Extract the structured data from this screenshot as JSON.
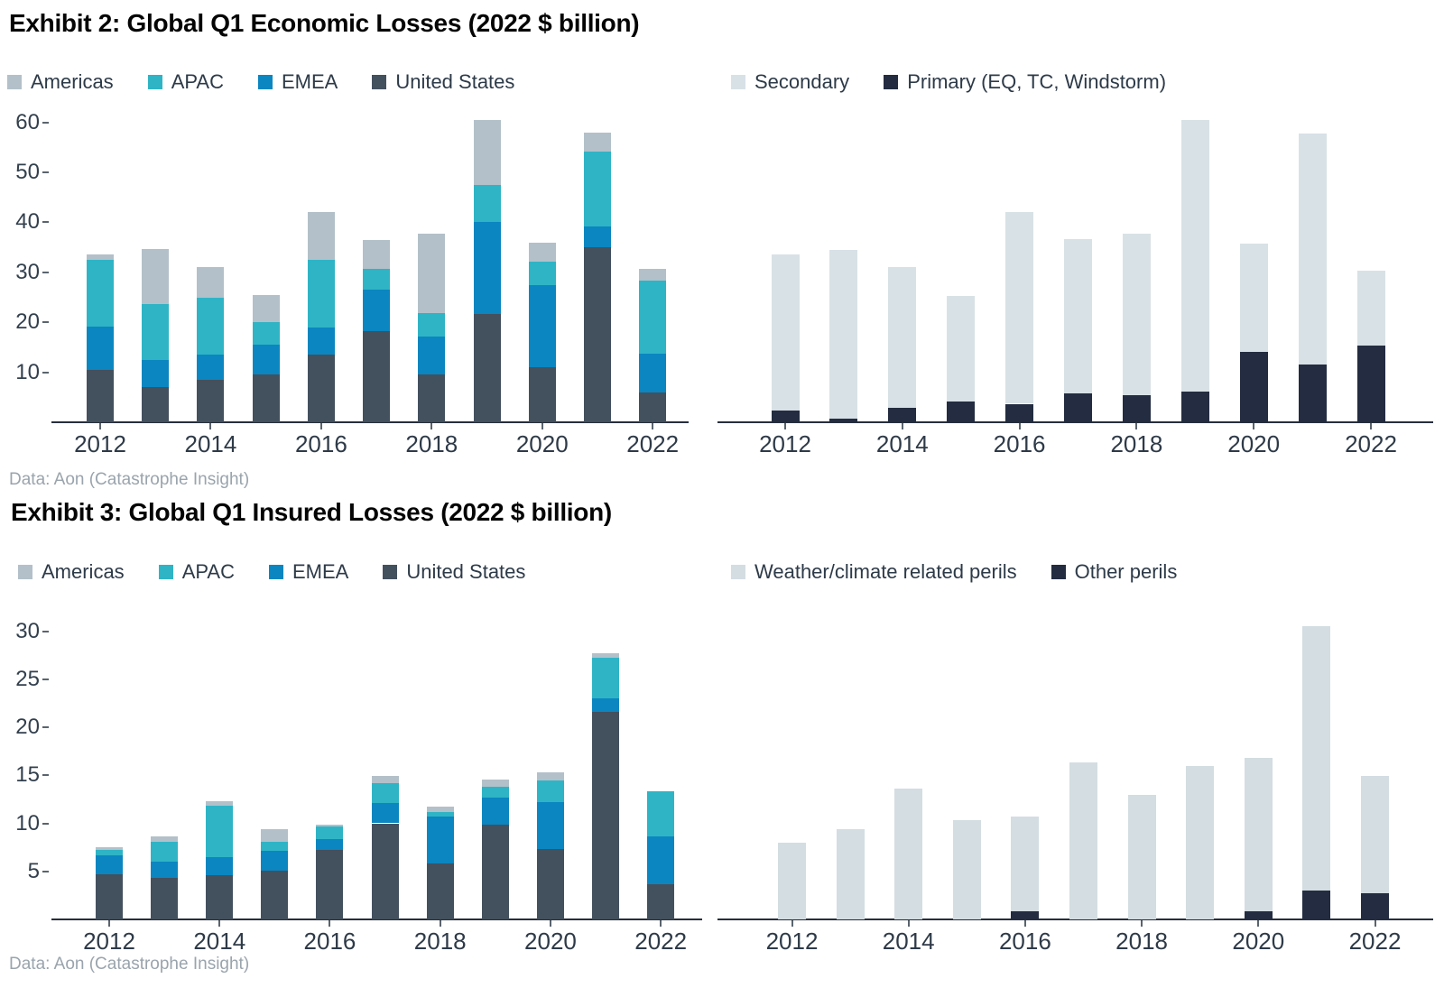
{
  "exhibit2": {
    "title": "Exhibit 2: Global Q1 Economic Losses (2022 $ billion)",
    "source": "Data: Aon (Catastrophe Insight)",
    "legend_left": [
      {
        "label": "Americas",
        "color_key": "americas"
      },
      {
        "label": "APAC",
        "color_key": "apac"
      },
      {
        "label": "EMEA",
        "color_key": "emea"
      },
      {
        "label": "United States",
        "color_key": "united_states"
      }
    ],
    "legend_right": [
      {
        "label": "Secondary",
        "color_key": "secondary"
      },
      {
        "label": "Primary (EQ, TC, Windstorm)",
        "color_key": "primary"
      }
    ]
  },
  "exhibit3": {
    "title": "Exhibit 3: Global Q1 Insured Losses (2022 $ billion)",
    "source": "Data: Aon (Catastrophe Insight)",
    "legend_left": [
      {
        "label": "Americas",
        "color_key": "americas"
      },
      {
        "label": "APAC",
        "color_key": "apac"
      },
      {
        "label": "EMEA",
        "color_key": "emea"
      },
      {
        "label": "United States",
        "color_key": "united_states"
      }
    ],
    "legend_right": [
      {
        "label": "Weather/climate related perils",
        "color_key": "weather"
      },
      {
        "label": "Other perils",
        "color_key": "other"
      }
    ]
  },
  "colors": {
    "united_states": "#43505e",
    "emea": "#0b86c0",
    "apac": "#2fb4c5",
    "americas": "#b3c0c9",
    "secondary": "#d8e1e6",
    "primary": "#232c40",
    "weather": "#d3dde2",
    "other": "#232c40",
    "axis_line": "#262f3b",
    "tick_mark": "#5a646e",
    "tick_label": "#2e3a48",
    "source_text": "#9aa4ad",
    "title_text": "#050505"
  },
  "chart_data": [
    {
      "id": "economic-by-region",
      "type": "bar",
      "stacked": true,
      "title": "Global Q1 Economic Losses by region (2022 $ billion)",
      "categories": [
        2012,
        2013,
        2014,
        2015,
        2016,
        2017,
        2018,
        2019,
        2020,
        2021,
        2022
      ],
      "x_tick_labels": [
        "2012",
        "2014",
        "2016",
        "2018",
        "2020",
        "2022"
      ],
      "y_ticks": [
        10,
        20,
        30,
        40,
        50,
        60
      ],
      "ylim": [
        0,
        62
      ],
      "grid": false,
      "legend_position": "top",
      "series": [
        {
          "name": "United States",
          "color_key": "united_states",
          "values": [
            10.4,
            7.1,
            8.4,
            9.6,
            13.6,
            18.2,
            9.6,
            21.7,
            11.0,
            35.0,
            6.0
          ]
        },
        {
          "name": "EMEA",
          "color_key": "emea",
          "values": [
            8.7,
            5.4,
            5.1,
            5.9,
            5.3,
            8.3,
            7.6,
            18.4,
            16.5,
            4.1,
            7.8
          ]
        },
        {
          "name": "APAC",
          "color_key": "apac",
          "values": [
            13.4,
            11.1,
            11.4,
            4.5,
            13.6,
            4.2,
            4.7,
            7.3,
            4.7,
            15.1,
            14.6
          ]
        },
        {
          "name": "Americas",
          "color_key": "americas",
          "values": [
            1.1,
            11.1,
            6.2,
            5.4,
            9.5,
            5.8,
            15.9,
            13.1,
            3.7,
            3.7,
            2.3
          ]
        }
      ]
    },
    {
      "id": "economic-by-peril",
      "type": "bar",
      "stacked": true,
      "title": "Global Q1 Economic Losses by peril class (2022 $ billion)",
      "categories": [
        2012,
        2013,
        2014,
        2015,
        2016,
        2017,
        2018,
        2019,
        2020,
        2021,
        2022
      ],
      "x_tick_labels": [
        "2012",
        "2014",
        "2016",
        "2018",
        "2020",
        "2022"
      ],
      "y_ticks": [],
      "ylim": [
        0,
        62
      ],
      "grid": false,
      "legend_position": "top",
      "series": [
        {
          "name": "Primary (EQ, TC, Windstorm)",
          "color_key": "primary",
          "values": [
            2.4,
            0.7,
            2.8,
            4.2,
            3.7,
            5.8,
            5.5,
            6.2,
            14.1,
            11.6,
            15.3
          ]
        },
        {
          "name": "Secondary",
          "color_key": "secondary",
          "values": [
            31.2,
            33.8,
            28.2,
            21.1,
            38.3,
            30.8,
            32.2,
            54.2,
            21.7,
            46.2,
            15.1
          ]
        }
      ]
    },
    {
      "id": "insured-by-region",
      "type": "bar",
      "stacked": true,
      "title": "Global Q1 Insured Losses by region (2022 $ billion)",
      "categories": [
        2012,
        2013,
        2014,
        2015,
        2016,
        2017,
        2018,
        2019,
        2020,
        2021,
        2022
      ],
      "x_tick_labels": [
        "2012",
        "2014",
        "2016",
        "2018",
        "2020",
        "2022"
      ],
      "y_ticks": [
        5,
        10,
        15,
        20,
        25,
        30
      ],
      "ylim": [
        0,
        32
      ],
      "grid": false,
      "legend_position": "top",
      "series": [
        {
          "name": "United States",
          "color_key": "united_states",
          "values": [
            4.7,
            4.3,
            4.6,
            5.1,
            7.2,
            10.0,
            5.8,
            9.9,
            7.3,
            21.6,
            3.7
          ]
        },
        {
          "name": "EMEA",
          "color_key": "emea",
          "values": [
            2.0,
            1.7,
            1.9,
            2.0,
            1.2,
            2.1,
            4.9,
            2.8,
            4.9,
            1.4,
            4.9
          ]
        },
        {
          "name": "APAC",
          "color_key": "apac",
          "values": [
            0.5,
            2.1,
            5.3,
            1.0,
            1.3,
            2.1,
            0.5,
            1.1,
            2.3,
            4.2,
            4.7
          ]
        },
        {
          "name": "Americas",
          "color_key": "americas",
          "values": [
            0.3,
            0.5,
            0.5,
            1.3,
            0.2,
            0.7,
            0.5,
            0.8,
            0.8,
            0.5,
            0.0
          ]
        }
      ]
    },
    {
      "id": "insured-by-peril",
      "type": "bar",
      "stacked": true,
      "title": "Global Q1 Insured Losses by peril type (2022 $ billion)",
      "categories": [
        2012,
        2013,
        2014,
        2015,
        2016,
        2017,
        2018,
        2019,
        2020,
        2021,
        2022
      ],
      "x_tick_labels": [
        "2012",
        "2014",
        "2016",
        "2018",
        "2020",
        "2022"
      ],
      "y_ticks": [],
      "ylim": [
        0,
        32
      ],
      "grid": false,
      "legend_position": "top",
      "series": [
        {
          "name": "Other perils",
          "color_key": "other",
          "values": [
            0,
            0,
            0,
            0,
            0.8,
            0,
            0,
            0,
            0.8,
            3.0,
            2.7
          ]
        },
        {
          "name": "Weather/climate related perils",
          "color_key": "weather",
          "values": [
            8.0,
            9.4,
            13.6,
            10.3,
            9.9,
            16.3,
            13.0,
            16.0,
            16.0,
            27.5,
            12.2
          ]
        }
      ]
    }
  ]
}
